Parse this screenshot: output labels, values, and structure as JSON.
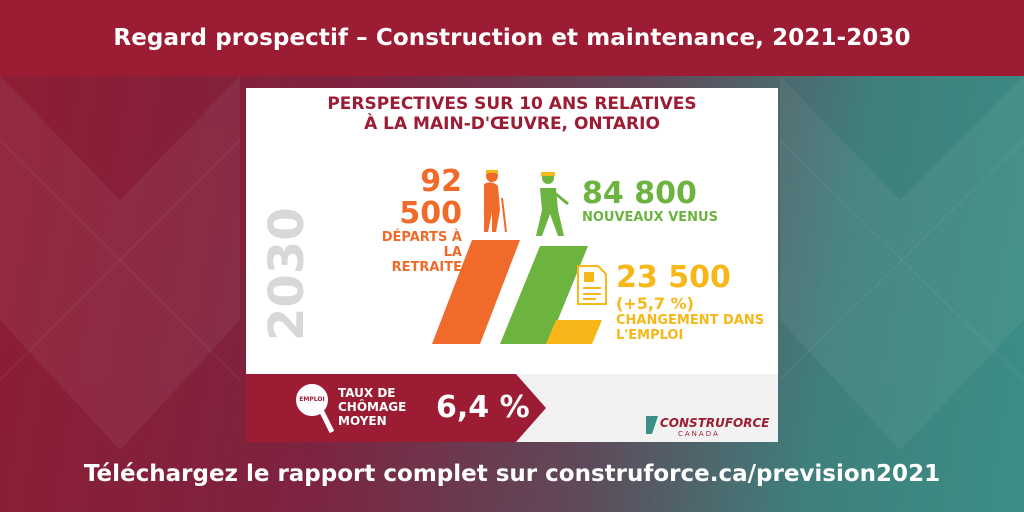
{
  "header": {
    "title": "Regard prospectif – Construction et maintenance, 2021-2030"
  },
  "card": {
    "title_line1": "PERSPECTIVES SUR 10 ANS RELATIVES",
    "title_line2": "À LA MAIN-D'ŒUVRE, ONTARIO",
    "year": "2030",
    "retirements": {
      "value": "92 500",
      "label_line1": "DÉPARTS À LA",
      "label_line2": "RETRAITE"
    },
    "newcomers": {
      "value": "84 800",
      "label": "NOUVEAUX VENUS"
    },
    "employment": {
      "value": "23 500",
      "pct": "(+5,7 %)",
      "label_line1": "CHANGEMENT DANS",
      "label_line2": "L'EMPLOI"
    },
    "unemployment": {
      "icon_label": "EMPLOI",
      "label_line1": "TAUX DE",
      "label_line2": "CHÔMAGE",
      "label_line3": "MOYEN",
      "value": "6,4 %"
    },
    "logo": {
      "name": "CONSTRUFORCE",
      "sub": "CANADA"
    }
  },
  "footer": {
    "text": "Téléchargez le rapport complet sur construforce.ca/prevision2021"
  },
  "colors": {
    "brand_red": "#9c1c34",
    "orange": "#f06a2a",
    "green": "#6cb33f",
    "yellow": "#f7b718"
  }
}
